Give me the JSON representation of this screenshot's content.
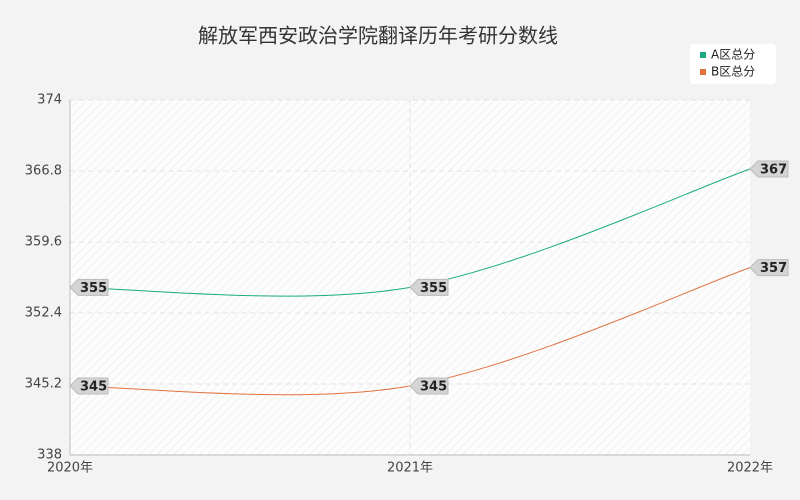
{
  "chart_data": {
    "type": "line",
    "title": "解放军西安政治学院翻译历年考研分数线",
    "categories": [
      "2020年",
      "2021年",
      "2022年"
    ],
    "series": [
      {
        "name": "A区总分",
        "color": "#1aab85",
        "values": [
          355,
          355,
          367
        ]
      },
      {
        "name": "B区总分",
        "color": "#e0723e",
        "values": [
          345,
          345,
          357
        ]
      }
    ],
    "ylim": [
      338,
      374
    ],
    "yticks": [
      338,
      345.2,
      352.4,
      359.6,
      366.8,
      374
    ],
    "grid": true,
    "legend": "top-right",
    "smooth": true
  }
}
